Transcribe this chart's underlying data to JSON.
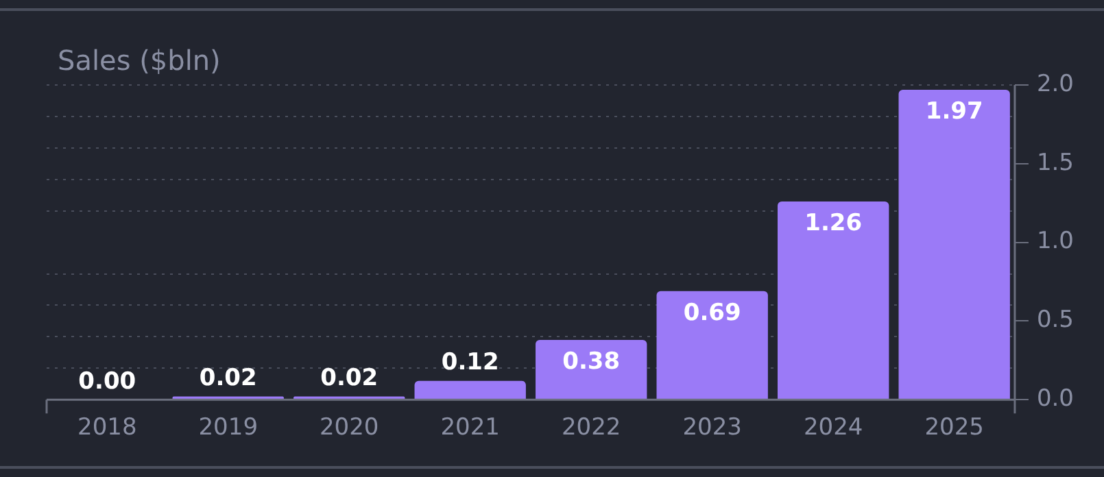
{
  "chart_data": {
    "type": "bar",
    "title": "Sales ($bln)",
    "categories": [
      "2018",
      "2019",
      "2020",
      "2021",
      "2022",
      "2023",
      "2024",
      "2025"
    ],
    "values": [
      0.0,
      0.02,
      0.02,
      0.12,
      0.38,
      0.69,
      1.26,
      1.97
    ],
    "color": "#9b7af7",
    "ylim": [
      0,
      2
    ],
    "yticks": [
      {
        "value": 0,
        "label": "0.0"
      },
      {
        "value": 0.2,
        "label": null
      },
      {
        "value": 0.4,
        "label": null
      },
      0.5,
      {
        "value": 0.6,
        "label": null
      },
      {
        "value": 0.8,
        "label": null
      },
      {
        "value": 1,
        "label": "1.0"
      },
      {
        "value": 1.2,
        "label": null
      },
      {
        "value": 1.4,
        "label": null
      },
      1.5,
      {
        "value": 1.6,
        "label": null
      },
      {
        "value": 1.8,
        "label": null
      },
      {
        "value": 2,
        "label": "2.0"
      }
    ],
    "value_labels": [
      "0.00",
      "0.02",
      "0.02",
      "0.12",
      "0.38",
      "0.69",
      "1.26",
      "1.97"
    ],
    "grid": "y",
    "legend": false
  }
}
